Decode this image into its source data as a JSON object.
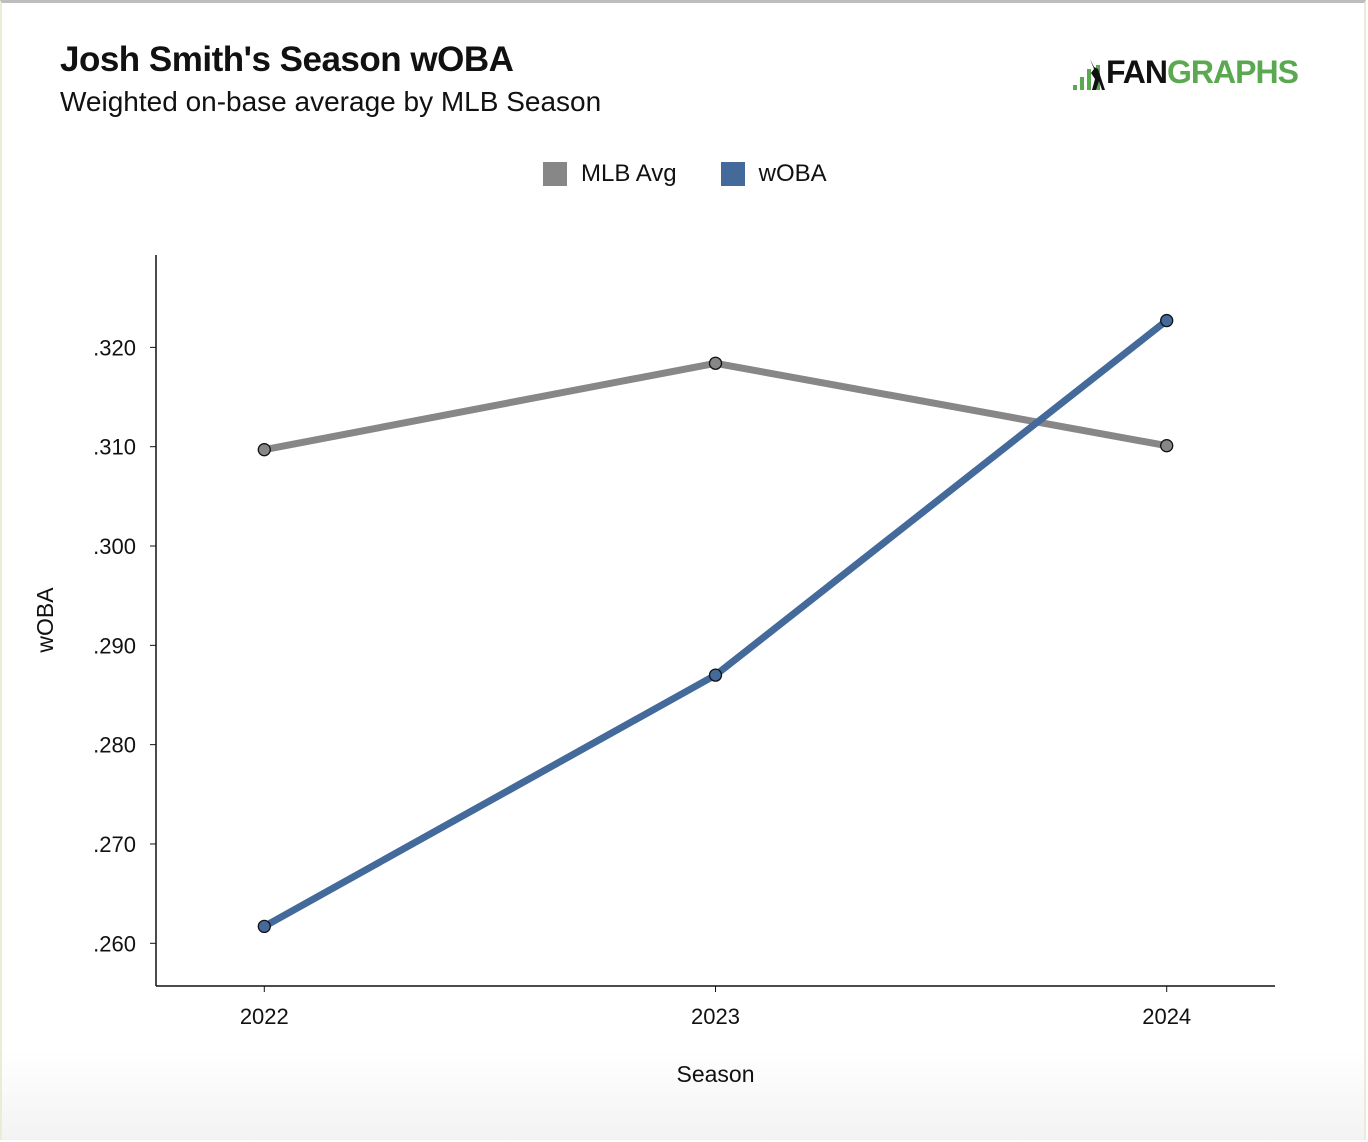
{
  "header": {
    "title": "Josh Smith's Season wOBA",
    "subtitle": "Weighted on-base average by MLB Season",
    "logo_text": "FANGRAPHS"
  },
  "chart_data": {
    "type": "line",
    "title": "Josh Smith's Season wOBA",
    "subtitle": "Weighted on-base average by MLB Season",
    "xlabel": "Season",
    "ylabel": "wOBA",
    "x": [
      2022,
      2023,
      2024
    ],
    "x_ticks": [
      "2022",
      "2023",
      "2024"
    ],
    "y_ticks": [
      0.26,
      0.27,
      0.28,
      0.29,
      0.3,
      0.31,
      0.32
    ],
    "y_tick_labels": [
      ".260",
      ".270",
      ".280",
      ".290",
      ".300",
      ".310",
      ".320"
    ],
    "xlim": [
      2021.76,
      2024.24
    ],
    "ylim": [
      0.2557,
      0.3293
    ],
    "grid": false,
    "legend": "top-center",
    "series": [
      {
        "name": "MLB Avg",
        "color": "#878787",
        "values": [
          0.3097,
          0.3184,
          0.3101
        ]
      },
      {
        "name": "wOBA",
        "color": "#436a9a",
        "values": [
          0.2617,
          0.287,
          0.3227
        ]
      }
    ]
  }
}
